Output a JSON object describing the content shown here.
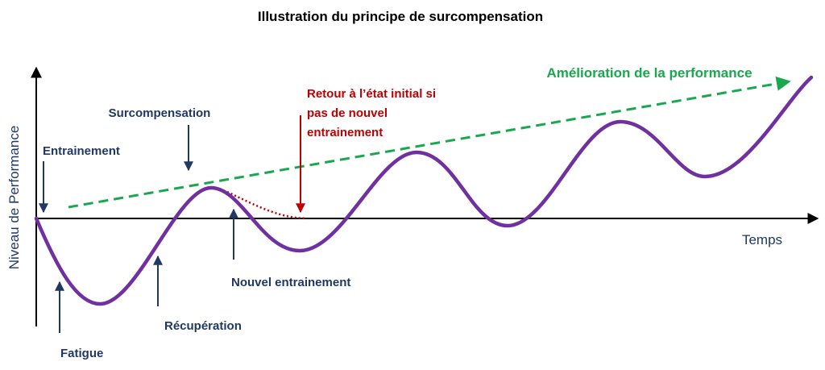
{
  "title": "Illustration du principe de surcompensation",
  "axes": {
    "y_label": "Niveau de Performance",
    "x_label": "Temps"
  },
  "annotations": {
    "entrainement": "Entrainement",
    "surcompensation": "Surcompensation",
    "fatigue": "Fatigue",
    "recuperation": "Récupération",
    "nouvel_entrainement": "Nouvel entrainement",
    "retour_line1": "Retour à l’état initial si",
    "retour_line2": "pas de nouvel",
    "retour_line3": "entrainement",
    "amelioration": "Amélioration de la performance"
  },
  "colors": {
    "curve": "#7030a0",
    "trend": "#1aa84f",
    "return": "#c00000",
    "labels": "#1f3864",
    "axis": "#000000"
  }
}
